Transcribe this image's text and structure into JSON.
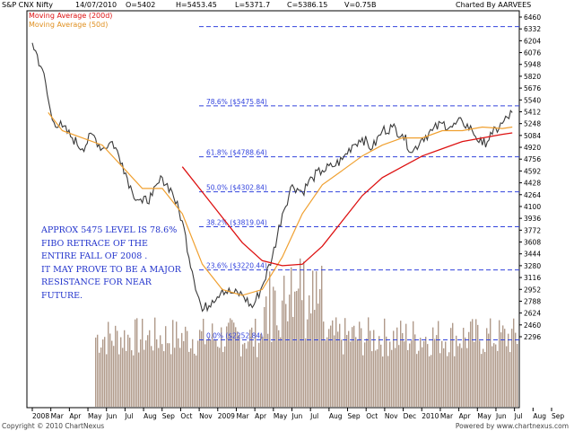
{
  "header": {
    "symbol": "S&P CNX Nifty",
    "date": "14/07/2010",
    "open": "O=5402",
    "high": "H=5453.45",
    "low": "L=5371.7",
    "close": "C=5386.15",
    "volume": "V=0.75B",
    "charted_by": "Charted By AARVEES"
  },
  "legend": {
    "ma200": "Moving Average (200d)",
    "ma50": "Moving Average (50d)"
  },
  "annotation": [
    "APPROX 5475 LEVEL IS 78.6%",
    "FIBO RETRACE OF THE",
    "ENTIRE FALL OF 2008 .",
    " IT MAY PROVE TO BE A MAJOR",
    "RESISTANCE FOR NEAR",
    "FUTURE."
  ],
  "footer": {
    "copyright": "Copyright © 2010 ChartNexus",
    "powered": "Powered by www.chartnexus.com"
  },
  "colors": {
    "price": "#3a3a3a",
    "ma200": "#dd1111",
    "ma50": "#f0a030",
    "fib": "#3344dd",
    "volume": "#b09a8a"
  },
  "chart_data": {
    "type": "line",
    "y_ticks": [
      6460,
      6332,
      6204,
      6076,
      5948,
      5820,
      5676,
      5540,
      5412,
      5248,
      5084,
      4920,
      4756,
      4592,
      4428,
      4264,
      4100,
      3936,
      3772,
      3608,
      3444,
      3280,
      3116,
      2952,
      2788,
      2624,
      2460,
      2296
    ],
    "x_ticks": [
      "2008",
      "Mar",
      "Apr",
      "May",
      "Jun",
      "Jul",
      "Aug",
      "Sep",
      "Oct",
      "Nov",
      "2009",
      "Mar",
      "Apr",
      "May",
      "Jun",
      "Jul",
      "Aug",
      "Sep",
      "Oct",
      "Nov",
      "Dec",
      "2010",
      "Mar",
      "Apr",
      "May",
      "Jun",
      "Jul",
      "Aug",
      "Sep"
    ],
    "fib_levels": [
      {
        "label": "78.6%  ($5475.84)",
        "value": 5475.84
      },
      {
        "label": "61.8%  ($4788.64)",
        "value": 4788.64
      },
      {
        "label": "50.0%  ($4302.84)",
        "value": 4302.84
      },
      {
        "label": "38.2%  ($3819.04)",
        "value": 3819.04
      },
      {
        "label": "23.6%  ($3220.44)",
        "value": 3220.44
      },
      {
        "label": "0.0%  ($2252.84)",
        "value": 2252.84
      }
    ],
    "top_level": 6357,
    "series": [
      {
        "name": "Moving Average (200d)"
      },
      {
        "name": "Moving Average (50d)"
      }
    ],
    "price_path": [
      [
        0,
        6180
      ],
      [
        0.5,
        5900
      ],
      [
        1,
        5300
      ],
      [
        1.5,
        5200
      ],
      [
        2,
        5050
      ],
      [
        2.5,
        4900
      ],
      [
        3,
        5100
      ],
      [
        3.5,
        4900
      ],
      [
        4,
        5000
      ],
      [
        4.5,
        4700
      ],
      [
        5,
        4300
      ],
      [
        5.5,
        4150
      ],
      [
        6,
        4250
      ],
      [
        6.5,
        4500
      ],
      [
        7,
        4300
      ],
      [
        7.5,
        3900
      ],
      [
        8,
        3200
      ],
      [
        8.5,
        2650
      ],
      [
        9,
        2800
      ],
      [
        9.5,
        2950
      ],
      [
        10,
        2900
      ],
      [
        10.5,
        2880
      ],
      [
        11,
        2700
      ],
      [
        11.5,
        3000
      ],
      [
        12,
        3400
      ],
      [
        12.5,
        4000
      ],
      [
        13,
        4400
      ],
      [
        13.5,
        4300
      ],
      [
        14,
        4500
      ],
      [
        14.5,
        4600
      ],
      [
        15,
        4650
      ],
      [
        15.5,
        4750
      ],
      [
        16,
        4950
      ],
      [
        16.5,
        5050
      ],
      [
        17,
        4900
      ],
      [
        17.5,
        5150
      ],
      [
        18,
        5200
      ],
      [
        18.5,
        5100
      ],
      [
        19,
        4850
      ],
      [
        19.5,
        5050
      ],
      [
        20,
        5150
      ],
      [
        20.5,
        5250
      ],
      [
        21,
        5200
      ],
      [
        21.5,
        5280
      ],
      [
        22,
        5150
      ],
      [
        22.5,
        4950
      ],
      [
        23,
        5100
      ],
      [
        23.5,
        5250
      ],
      [
        24,
        5400
      ]
    ],
    "ma200_path": [
      [
        7.5,
        4650
      ],
      [
        8.5,
        4300
      ],
      [
        9.5,
        3950
      ],
      [
        10.5,
        3600
      ],
      [
        11.5,
        3350
      ],
      [
        12.5,
        3280
      ],
      [
        13.5,
        3300
      ],
      [
        14.5,
        3550
      ],
      [
        15.5,
        3900
      ],
      [
        16.5,
        4250
      ],
      [
        17.5,
        4500
      ],
      [
        18.5,
        4650
      ],
      [
        19.5,
        4800
      ],
      [
        20.5,
        4900
      ],
      [
        21.5,
        5000
      ],
      [
        22.5,
        5050
      ],
      [
        23.5,
        5100
      ],
      [
        24,
        5120
      ]
    ],
    "ma50_path": [
      [
        0.8,
        5400
      ],
      [
        1.5,
        5150
      ],
      [
        2.5,
        5050
      ],
      [
        3.5,
        4950
      ],
      [
        4.5,
        4650
      ],
      [
        5.5,
        4350
      ],
      [
        6.5,
        4350
      ],
      [
        7.5,
        4000
      ],
      [
        8.5,
        3300
      ],
      [
        9.5,
        2950
      ],
      [
        10.5,
        2870
      ],
      [
        11.5,
        2950
      ],
      [
        12.5,
        3400
      ],
      [
        13.5,
        4000
      ],
      [
        14.5,
        4400
      ],
      [
        15.5,
        4600
      ],
      [
        16.5,
        4800
      ],
      [
        17.5,
        4950
      ],
      [
        18.5,
        5050
      ],
      [
        19.5,
        5050
      ],
      [
        20.5,
        5150
      ],
      [
        21.5,
        5150
      ],
      [
        22.5,
        5200
      ],
      [
        23.5,
        5180
      ],
      [
        24,
        5200
      ]
    ]
  }
}
